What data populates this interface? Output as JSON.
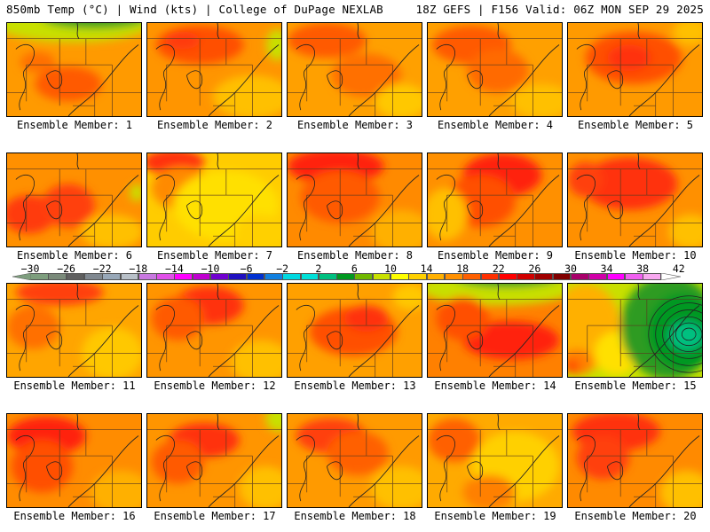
{
  "header": {
    "left": "850mb Temp (°C) | Wind (kts) | College of DuPage NEXLAB",
    "right": "18Z GEFS | F156 Valid: 06Z MON SEP 29 2025"
  },
  "product": {
    "level": "850mb",
    "field": "Temp (°C)",
    "overlay": "Wind (kts)",
    "source": "College of DuPage NEXLAB",
    "run": "18Z GEFS",
    "forecast_hour": "F156",
    "valid": "06Z MON SEP 29 2025"
  },
  "colorbar": {
    "unit": "°C",
    "tick_labels": [
      "-30",
      "-26",
      "-22",
      "-18",
      "-14",
      "-10",
      "-6",
      "-2",
      "2",
      "6",
      "10",
      "14",
      "18",
      "22",
      "26",
      "30",
      "34",
      "38",
      "42"
    ],
    "bins_start": -30,
    "bin_width": 2,
    "colors": [
      "#7e9e7e",
      "#7a8a7a",
      "#5f5f5f",
      "#808890",
      "#98a8b8",
      "#b8c0c8",
      "#c878e0",
      "#e050e8",
      "#ff00ff",
      "#c000d0",
      "#7000d0",
      "#2010c0",
      "#0030d0",
      "#1080e0",
      "#00d8e0",
      "#00e0d8",
      "#00c080",
      "#009820",
      "#70b800",
      "#c8e000",
      "#ffff00",
      "#ffd000",
      "#ffb000",
      "#ff9000",
      "#ff6000",
      "#ff3000",
      "#ff0000",
      "#d00000",
      "#a00000",
      "#800000",
      "#a8006a",
      "#d000a8",
      "#ff00ff",
      "#f060f0",
      "#f8a8f0"
    ]
  },
  "members": [
    {
      "label": "Ensemble Member: 1",
      "id": 1
    },
    {
      "label": "Ensemble Member: 2",
      "id": 2
    },
    {
      "label": "Ensemble Member: 3",
      "id": 3
    },
    {
      "label": "Ensemble Member: 4",
      "id": 4
    },
    {
      "label": "Ensemble Member: 5",
      "id": 5
    },
    {
      "label": "Ensemble Member: 6",
      "id": 6
    },
    {
      "label": "Ensemble Member: 7",
      "id": 7
    },
    {
      "label": "Ensemble Member: 8",
      "id": 8
    },
    {
      "label": "Ensemble Member: 9",
      "id": 9
    },
    {
      "label": "Ensemble Member: 10",
      "id": 10
    },
    {
      "label": "Ensemble Member: 11",
      "id": 11
    },
    {
      "label": "Ensemble Member: 12",
      "id": 12
    },
    {
      "label": "Ensemble Member: 13",
      "id": 13
    },
    {
      "label": "Ensemble Member: 14",
      "id": 14
    },
    {
      "label": "Ensemble Member: 15",
      "id": 15
    },
    {
      "label": "Ensemble Member: 16",
      "id": 16
    },
    {
      "label": "Ensemble Member: 17",
      "id": 17
    },
    {
      "label": "Ensemble Member: 18",
      "id": 18
    },
    {
      "label": "Ensemble Member: 19",
      "id": 19
    },
    {
      "label": "Ensemble Member: 20",
      "id": 20
    }
  ]
}
